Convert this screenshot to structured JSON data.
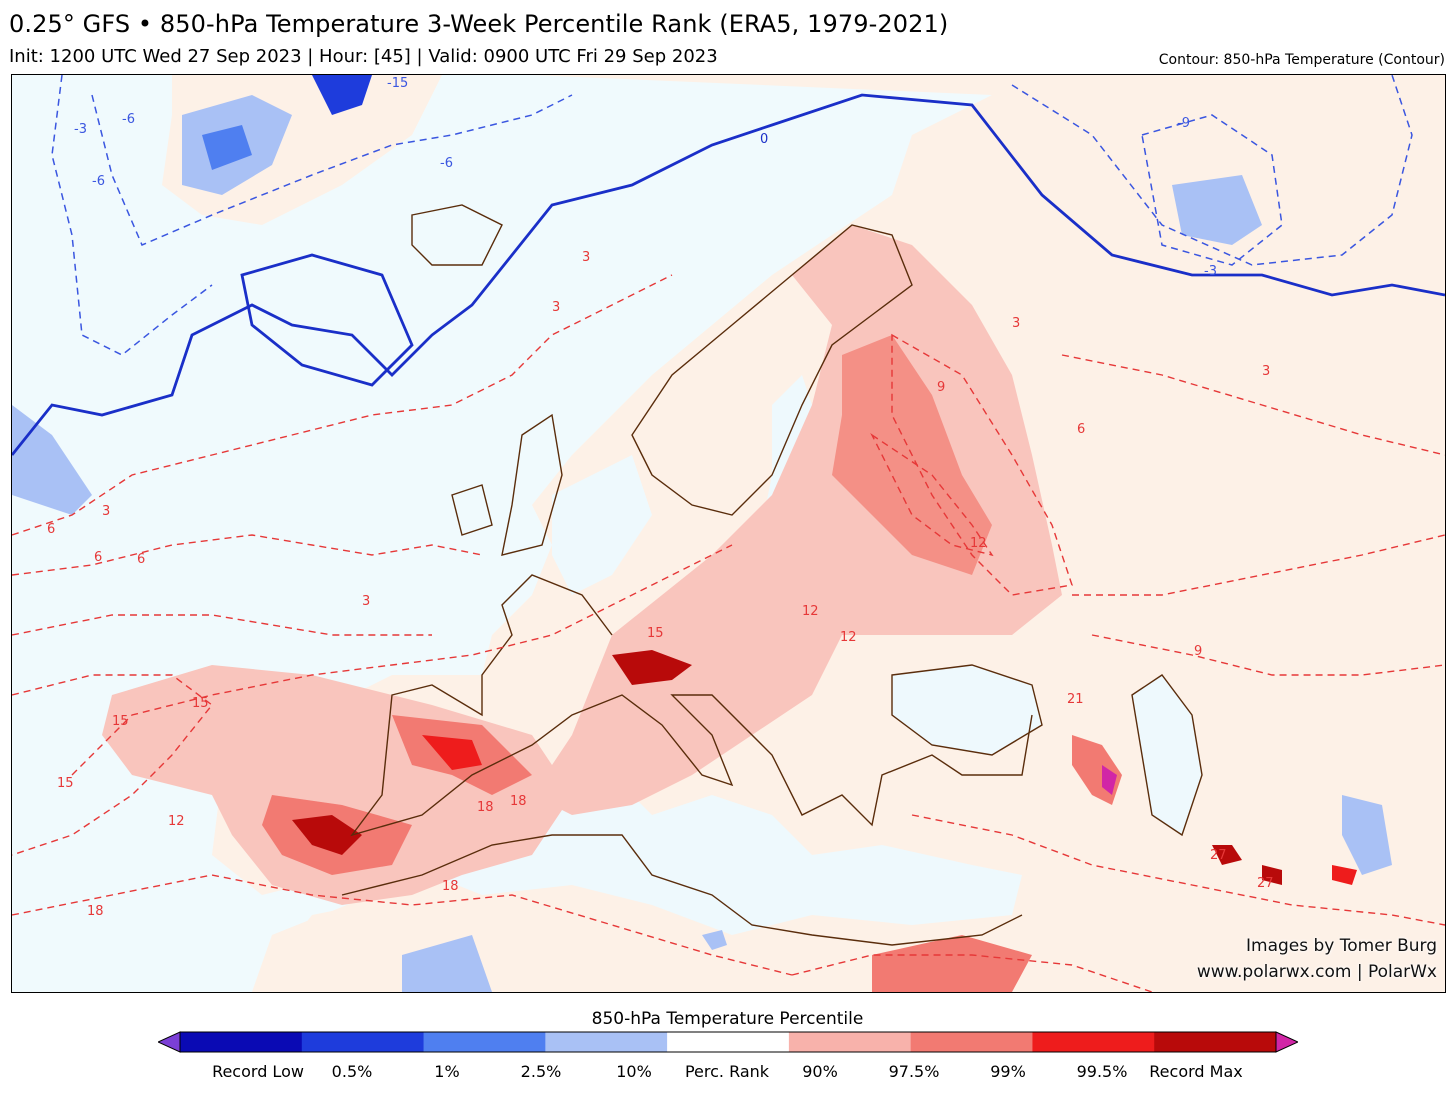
{
  "header": {
    "title": "0.25° GFS • 850-hPa Temperature 3-Week Percentile Rank (ERA5, 1979-2021)",
    "subtitle": "Init: 1200 UTC Wed 27 Sep 2023 | Hour: [45] | Valid: 0900 UTC Fri 29 Sep 2023",
    "contour_note": "Contour: 850-hPa Temperature (Contour)"
  },
  "map": {
    "contour_labels": [
      "0",
      "-3",
      "-6",
      "-6",
      "-15",
      "-6",
      "-3",
      "-9",
      "3",
      "3",
      "3",
      "3",
      "3",
      "3",
      "6",
      "6",
      "6",
      "6",
      "9",
      "9",
      "12",
      "12",
      "12",
      "12",
      "15",
      "15",
      "15",
      "15",
      "18",
      "18",
      "18",
      "18",
      "21",
      "27",
      "27"
    ]
  },
  "credits": {
    "line1": "Images by Tomer Burg",
    "line2": "www.polarwx.com | PolarWx"
  },
  "colorbar": {
    "title": "850-hPa Temperature Percentile",
    "colors": [
      "#7b3fd6",
      "#0a0ab4",
      "#1e3cdc",
      "#4f7ff0",
      "#a9c1f5",
      "#ffffff",
      "#f8b2ab",
      "#f27a72",
      "#ee1c1c",
      "#b80a0a",
      "#d126a6"
    ],
    "labels": [
      "Record Low",
      "0.5%",
      "1%",
      "2.5%",
      "10%",
      "Perc. Rank",
      "90%",
      "97.5%",
      "99%",
      "99.5%",
      "Record Max"
    ]
  }
}
